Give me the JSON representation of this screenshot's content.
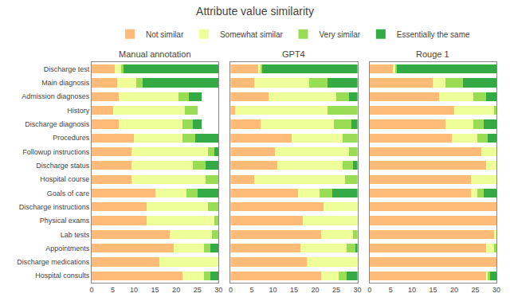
{
  "title": "Attribute value similarity",
  "chart_data": [
    {
      "type": "bar",
      "orientation": "horizontal",
      "stacked": true,
      "grid": false,
      "legend": "top",
      "title": "Manual annotation",
      "categories": [
        "Discharge test",
        "Main diagnosis",
        "Admission diagnoses",
        "History",
        "Discharge diagnosis",
        "Procedures",
        "Followup instructions",
        "Discharge status",
        "Hospital course",
        "Goals of care",
        "Discharge instructions",
        "Physical exams",
        "Lab tests",
        "Appointments",
        "Discharge medications",
        "Hospital consults"
      ],
      "series": [
        {
          "name": "Not similar",
          "color": "#FFBB77",
          "values": [
            5.5,
            6.0,
            6.5,
            5.0,
            6.5,
            10.0,
            9.5,
            9.5,
            9.5,
            15.0,
            13.0,
            13.0,
            18.5,
            19.5,
            16.0,
            21.5
          ]
        },
        {
          "name": "Somewhat similar",
          "color": "#EEFF99",
          "values": [
            1.5,
            4.5,
            14.0,
            17.0,
            15.0,
            11.5,
            18.0,
            14.5,
            17.5,
            7.5,
            14.5,
            16.0,
            10.0,
            7.0,
            14.0,
            5.0
          ]
        },
        {
          "name": "Very similar",
          "color": "#99DD55",
          "values": [
            0.5,
            1.5,
            2.5,
            3.0,
            2.5,
            3.0,
            1.5,
            3.0,
            3.0,
            2.5,
            2.5,
            1.0,
            1.5,
            1.5,
            0.0,
            1.5
          ]
        },
        {
          "name": "Essentially the same",
          "color": "#33AA44",
          "values": [
            22.5,
            18.0,
            3.0,
            0.0,
            2.0,
            5.5,
            1.0,
            3.0,
            0.0,
            5.0,
            0.0,
            0.0,
            0.0,
            2.0,
            0.0,
            2.0
          ]
        }
      ],
      "xlim": [
        0,
        30
      ],
      "xticks": [
        0,
        5,
        10,
        15,
        20,
        25,
        30
      ]
    },
    {
      "type": "bar",
      "orientation": "horizontal",
      "stacked": true,
      "grid": false,
      "tick_labels": "x",
      "title": "GPT4",
      "categories": [
        "Discharge test",
        "Main diagnosis",
        "Admission diagnoses",
        "History",
        "Discharge diagnosis",
        "Procedures",
        "Followup instructions",
        "Discharge status",
        "Hospital course",
        "Goals of care",
        "Discharge instructions",
        "Physical exams",
        "Lab tests",
        "Appointments",
        "Discharge medications",
        "Hospital consults"
      ],
      "series": [
        {
          "name": "Not similar",
          "color": "#FFBB77",
          "values": [
            6.5,
            5.5,
            9.0,
            1.0,
            7.0,
            14.5,
            10.5,
            11.0,
            5.5,
            16.0,
            22.0,
            17.0,
            21.5,
            16.5,
            18.0,
            21.5
          ]
        },
        {
          "name": "Somewhat similar",
          "color": "#EEFF99",
          "values": [
            0.5,
            13.0,
            16.0,
            22.0,
            17.5,
            12.0,
            17.5,
            15.5,
            21.5,
            5.0,
            8.0,
            13.0,
            7.5,
            11.0,
            12.0,
            4.0
          ]
        },
        {
          "name": "Very similar",
          "color": "#99DD55",
          "values": [
            0.5,
            4.5,
            3.0,
            7.0,
            4.0,
            3.5,
            2.0,
            2.5,
            3.0,
            3.0,
            0.0,
            0.0,
            1.0,
            2.0,
            0.0,
            2.0
          ]
        },
        {
          "name": "Essentially the same",
          "color": "#33AA44",
          "values": [
            22.5,
            7.0,
            2.0,
            0.0,
            1.5,
            0.0,
            0.0,
            1.0,
            0.0,
            6.0,
            0.0,
            0.0,
            0.0,
            0.5,
            0.0,
            2.5
          ]
        }
      ],
      "xlim": [
        0,
        30
      ],
      "xticks": [
        0,
        5,
        10,
        15,
        20,
        25,
        30
      ]
    },
    {
      "type": "bar",
      "orientation": "horizontal",
      "stacked": true,
      "grid": false,
      "tick_labels": "x",
      "title": "Rouge 1",
      "categories": [
        "Discharge test",
        "Main diagnosis",
        "Admission diagnoses",
        "History",
        "Discharge diagnosis",
        "Procedures",
        "Followup instructions",
        "Discharge status",
        "Hospital course",
        "Goals of care",
        "Discharge instructions",
        "Physical exams",
        "Lab tests",
        "Appointments",
        "Discharge medications",
        "Hospital consults"
      ],
      "series": [
        {
          "name": "Not similar",
          "color": "#FFBB77",
          "values": [
            5.5,
            15.0,
            16.5,
            20.0,
            18.0,
            19.5,
            26.5,
            27.5,
            24.0,
            24.0,
            30.0,
            30.0,
            29.5,
            27.5,
            30.0,
            27.5
          ]
        },
        {
          "name": "Somewhat similar",
          "color": "#EEFF99",
          "values": [
            0.5,
            3.0,
            8.0,
            9.5,
            6.5,
            6.0,
            3.5,
            2.5,
            6.0,
            1.5,
            0.0,
            0.0,
            0.5,
            2.0,
            0.0,
            0.5
          ]
        },
        {
          "name": "Very similar",
          "color": "#99DD55",
          "values": [
            0.5,
            4.0,
            3.0,
            0.5,
            2.5,
            2.5,
            0.0,
            0.0,
            0.0,
            1.5,
            0.0,
            0.0,
            0.0,
            0.5,
            0.0,
            0.5
          ]
        },
        {
          "name": "Essentially the same",
          "color": "#33AA44",
          "values": [
            23.5,
            8.0,
            2.5,
            0.0,
            3.0,
            2.0,
            0.0,
            0.0,
            0.0,
            3.0,
            0.0,
            0.0,
            0.0,
            0.0,
            0.0,
            1.5
          ]
        }
      ],
      "xlim": [
        0,
        30
      ],
      "xticks": [
        0,
        5,
        10,
        15,
        20,
        25,
        30
      ]
    }
  ]
}
